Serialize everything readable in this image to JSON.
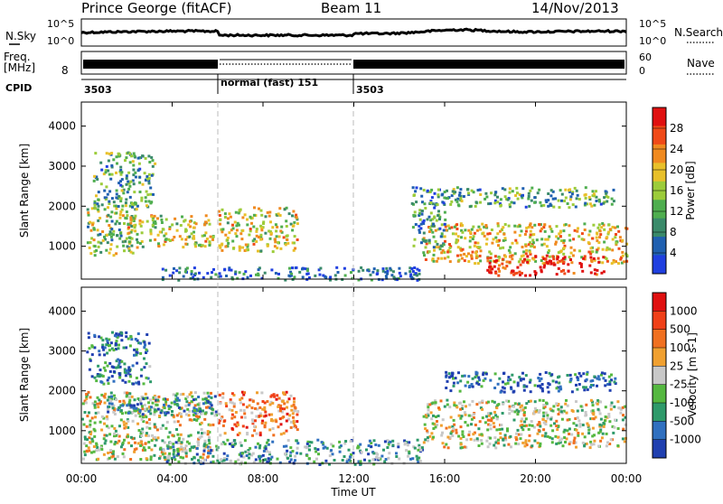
{
  "header": {
    "station": "Prince George (fitACF)",
    "beam": "Beam 11",
    "date": "14/Nov/2013"
  },
  "noise_panel": {
    "left_label": "N.Sky",
    "right_label": "N.Search",
    "left_ticks": [
      "10^5",
      "10^0"
    ],
    "right_ticks": [
      "10^5",
      "10^0"
    ]
  },
  "freq_panel": {
    "left_label_line1": "Freq.",
    "left_label_line2": "[MHz]",
    "left_tick": "8",
    "right_label": "Nave",
    "right_ticks": [
      "60",
      "0"
    ]
  },
  "cpid": {
    "label": "CPID",
    "segments": [
      {
        "start": 0,
        "text": "3503"
      },
      {
        "start": 6,
        "text": "normal (fast) 151"
      },
      {
        "start": 12,
        "text": "3503"
      }
    ]
  },
  "chart_data": [
    {
      "type": "heatmap",
      "name": "power",
      "ylabel": "Slant Range [km]",
      "yticks": [
        1000,
        2000,
        3000,
        4000
      ],
      "ylim": [
        180,
        4600
      ],
      "xlim": [
        0,
        24
      ],
      "colorbar_label": "Power [dB]",
      "colorbar_ticks": [
        "4",
        "8",
        "12",
        "16",
        "20",
        "24",
        "28"
      ],
      "colorbar_colors": [
        "#2040e0",
        "#2060b0",
        "#3a8a6a",
        "#4fae4f",
        "#9ccc3a",
        "#e8c02a",
        "#f08a20",
        "#f04a18",
        "#e01010"
      ],
      "regions": [
        {
          "t": [
            0.2,
            2.4
          ],
          "r": [
            800,
            2000
          ],
          "level": 0.45
        },
        {
          "t": [
            0.5,
            3.2
          ],
          "r": [
            2000,
            3400
          ],
          "level": 0.35
        },
        {
          "t": [
            2.0,
            5.8
          ],
          "r": [
            1000,
            1800
          ],
          "level": 0.55
        },
        {
          "t": [
            6.0,
            9.5
          ],
          "r": [
            900,
            2000
          ],
          "level": 0.55
        },
        {
          "t": [
            3.5,
            15.0
          ],
          "r": [
            180,
            500
          ],
          "level": 0.15
        },
        {
          "t": [
            15.0,
            24.0
          ],
          "r": [
            600,
            1600
          ],
          "level": 0.6
        },
        {
          "t": [
            17.8,
            23.0
          ],
          "r": [
            300,
            800
          ],
          "level": 0.95
        },
        {
          "t": [
            16.0,
            23.5
          ],
          "r": [
            2000,
            2500
          ],
          "level": 0.35
        },
        {
          "t": [
            14.5,
            16.0
          ],
          "r": [
            1000,
            2500
          ],
          "level": 0.3
        }
      ]
    },
    {
      "type": "heatmap",
      "name": "velocity",
      "ylabel": "Slant Range [km]",
      "yticks": [
        1000,
        2000,
        3000,
        4000
      ],
      "ylim": [
        180,
        4600
      ],
      "xlim": [
        0,
        24
      ],
      "colorbar_label": "Velocity [m s-1]",
      "colorbar_ticks": [
        "1000",
        "500",
        "100",
        "25",
        "-25",
        "-100",
        "-500",
        "-1000"
      ],
      "colorbar_colors": [
        "#2040b0",
        "#3070c0",
        "#2e9a6a",
        "#55b840",
        "#c8c8c8",
        "#f0a030",
        "#f07020",
        "#f04018",
        "#e01010"
      ],
      "regions": [
        {
          "t": [
            0.2,
            3.0
          ],
          "r": [
            2200,
            3500
          ],
          "level": 0.2
        },
        {
          "t": [
            0.0,
            5.8
          ],
          "r": [
            300,
            2000
          ],
          "level": 0.5
        },
        {
          "t": [
            1.0,
            6.0
          ],
          "r": [
            1400,
            1900
          ],
          "level": 0.25
        },
        {
          "t": [
            6.0,
            9.5
          ],
          "r": [
            900,
            2000
          ],
          "level": 0.7
        },
        {
          "t": [
            3.5,
            15.0
          ],
          "r": [
            180,
            800
          ],
          "level": 0.3
        },
        {
          "t": [
            15.0,
            24.0
          ],
          "r": [
            600,
            1800
          ],
          "level": 0.5
        },
        {
          "t": [
            16.0,
            23.5
          ],
          "r": [
            2000,
            2500
          ],
          "level": 0.15
        }
      ]
    }
  ],
  "xaxis": {
    "label": "Time UT",
    "ticks": [
      "00:00",
      "04:00",
      "08:00",
      "12:00",
      "16:00",
      "20:00",
      "00:00"
    ]
  }
}
